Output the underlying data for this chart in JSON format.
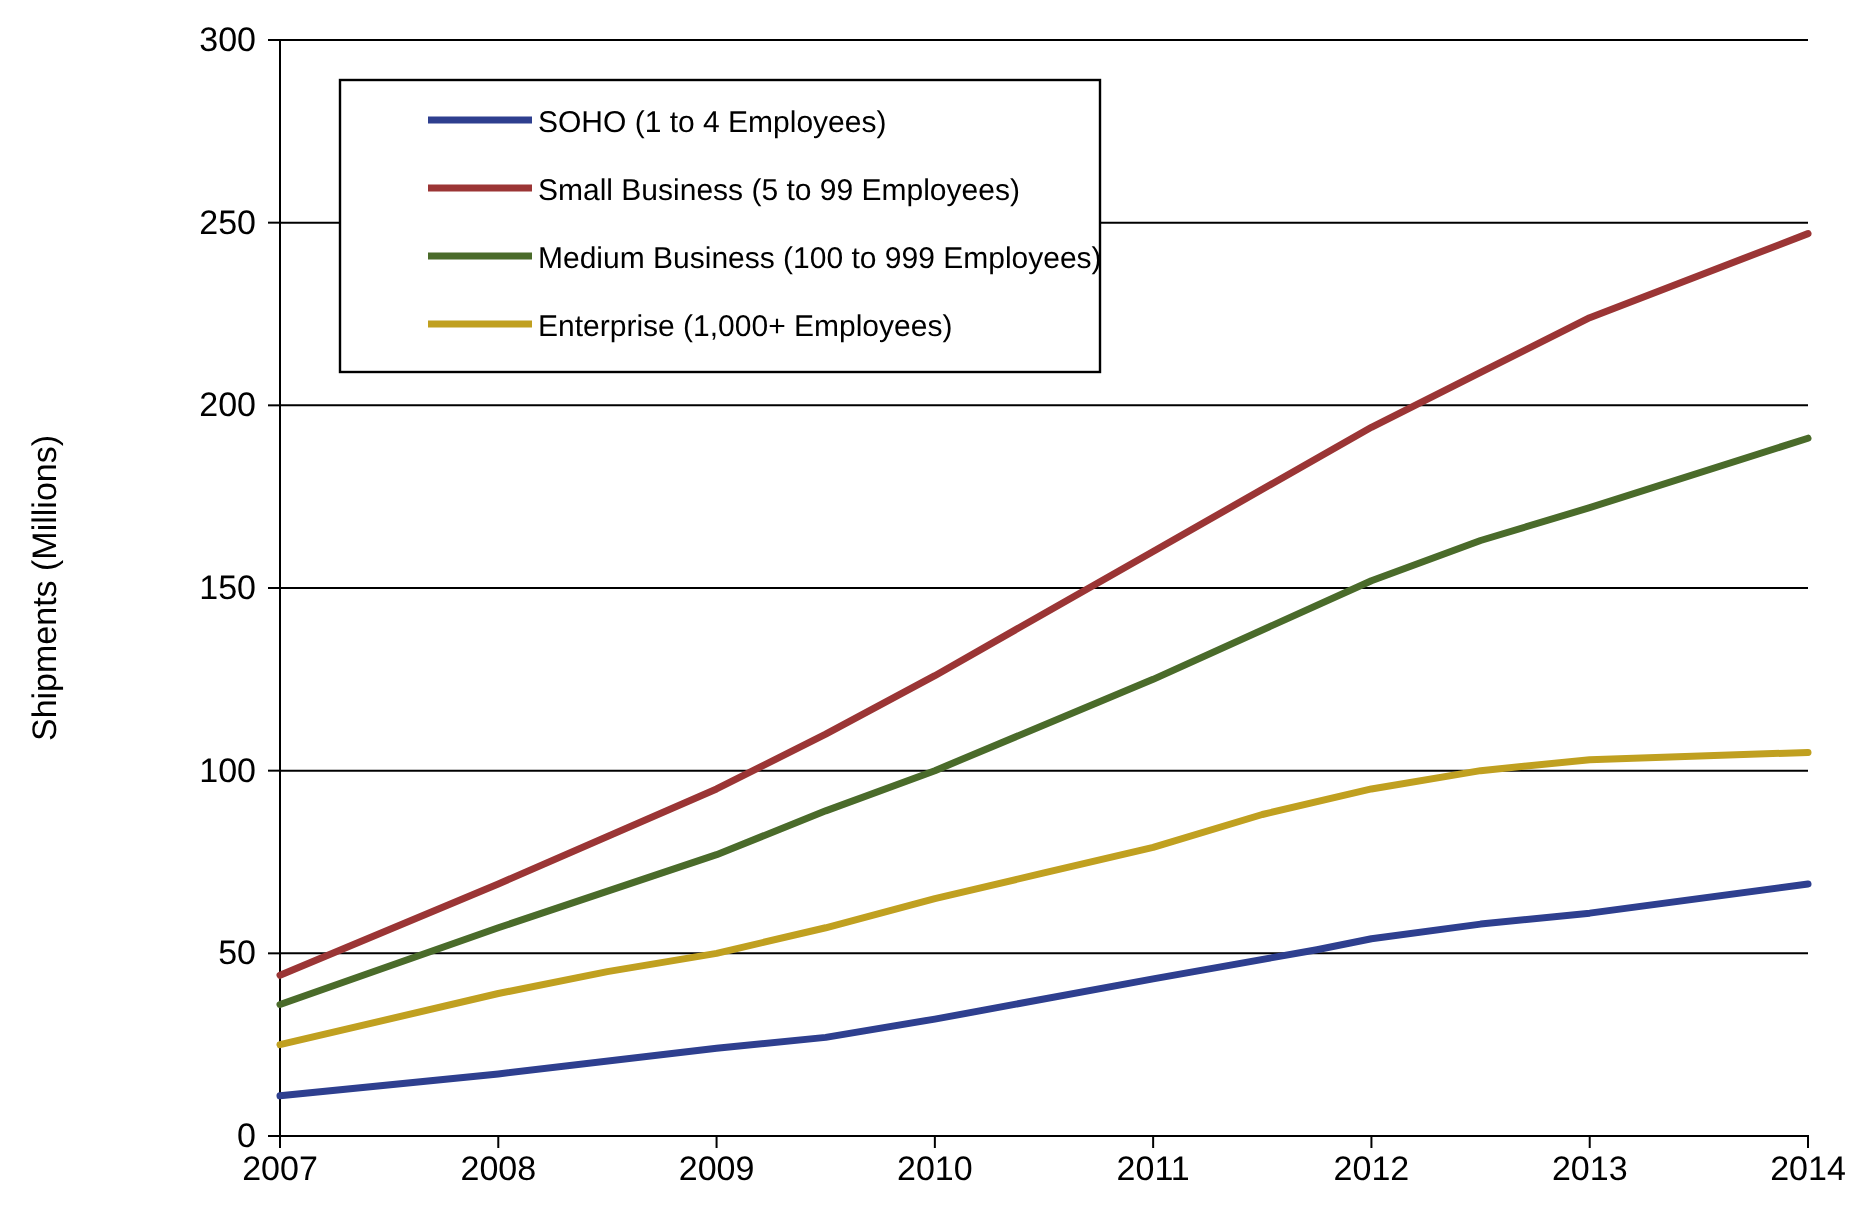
{
  "chart_data": {
    "type": "line",
    "ylabel": "Shipments (Millions)",
    "xlim": [
      2007,
      2014
    ],
    "xticks": [
      2007,
      2008,
      2009,
      2010,
      2011,
      2012,
      2013,
      2014
    ],
    "ylim": [
      0,
      300
    ],
    "yticks": [
      0,
      50,
      100,
      150,
      200,
      250,
      300
    ],
    "grid": "y",
    "legend": "top left",
    "marker": "none",
    "line_style": "solid",
    "series": [
      {
        "name": "SOHO (1 to 4 Employees)",
        "color": "#2e3f8f",
        "x": [
          2007,
          2008,
          2009,
          2009.5,
          2010,
          2011,
          2011.75,
          2012,
          2012.5,
          2013,
          2014
        ],
        "values": [
          11,
          17,
          24,
          27,
          32,
          43,
          51,
          54,
          58,
          61,
          69
        ]
      },
      {
        "name": "Small Business (5 to 99 Employees)",
        "color": "#9b3535",
        "x": [
          2007,
          2008,
          2009,
          2009.5,
          2010,
          2011,
          2012,
          2012.5,
          2013,
          2014
        ],
        "values": [
          44,
          69,
          95,
          110,
          126,
          160,
          194,
          209,
          224,
          247
        ]
      },
      {
        "name": "Medium Business (100 to 999 Employees)",
        "color": "#4a6b2a",
        "x": [
          2007,
          2008,
          2009,
          2009.5,
          2010,
          2011,
          2012,
          2012.5,
          2013,
          2014
        ],
        "values": [
          36,
          57,
          77,
          89,
          100,
          125,
          152,
          163,
          172,
          191
        ]
      },
      {
        "name": "Enterprise (1,000+ Employees)",
        "color": "#c0a020",
        "x": [
          2007,
          2008,
          2008.5,
          2009,
          2009.5,
          2010,
          2010.5,
          2011,
          2011.5,
          2012,
          2012.5,
          2013,
          2014
        ],
        "values": [
          25,
          39,
          45,
          50,
          57,
          65,
          72,
          79,
          88,
          95,
          100,
          103,
          105
        ]
      }
    ]
  }
}
